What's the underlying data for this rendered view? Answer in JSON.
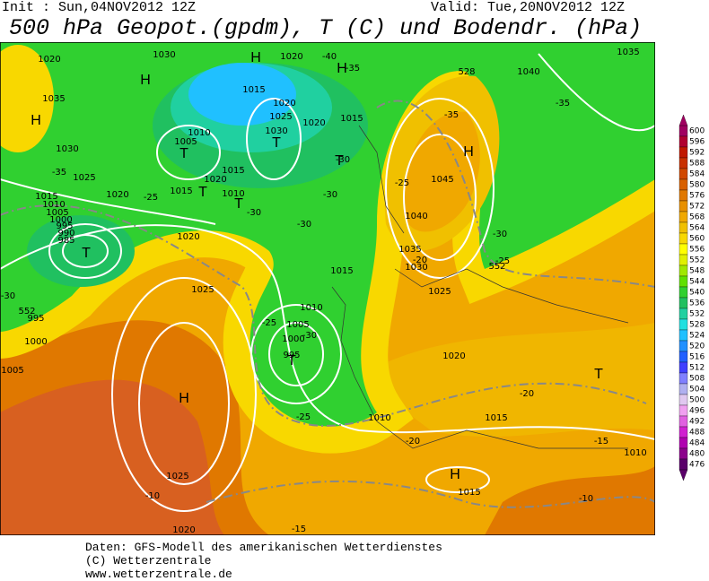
{
  "header": {
    "init": "Init : Sun,04NOV2012 12Z",
    "valid": "Valid: Tue,20NOV2012 12Z",
    "title": "500 hPa Geopot.(gpdm), T (C) und Bodendr. (hPa)"
  },
  "map_labels": [
    "1020",
    "1030",
    "1020",
    "1015",
    "1020",
    "1025",
    "1030",
    "1010",
    "1005",
    "1020",
    "1015",
    "1035",
    "1030",
    "1025",
    "1020",
    "1015",
    "1015",
    "1020",
    "1010",
    "1015",
    "1010",
    "1005",
    "1000",
    "995",
    "990",
    "985",
    "1020",
    "1025",
    "1015",
    "1010",
    "1005",
    "1000",
    "995",
    "1010",
    "1015",
    "1025",
    "1020",
    "1035",
    "1030",
    "1040",
    "1045",
    "1040",
    "1035",
    "1025",
    "1020",
    "1015",
    "1010",
    "995",
    "1000",
    "1005",
    "-40",
    "-35",
    "-35",
    "-35",
    "-35",
    "-30",
    "-30",
    "-30",
    "-30",
    "-30",
    "-30",
    "-25",
    "-25",
    "-25",
    "-25",
    "-25",
    "-20",
    "-20",
    "-20",
    "-15",
    "-15",
    "-10",
    "-10",
    "-30",
    "552",
    "528",
    "552"
  ],
  "centers": [
    "H",
    "H",
    "H",
    "H",
    "H",
    "H",
    "H",
    "T",
    "T",
    "T",
    "T",
    "T",
    "T",
    "T",
    "T"
  ],
  "colorbar": {
    "values": [
      600,
      596,
      592,
      588,
      584,
      580,
      576,
      572,
      568,
      564,
      560,
      556,
      552,
      548,
      544,
      540,
      536,
      532,
      528,
      524,
      520,
      516,
      512,
      508,
      504,
      500,
      496,
      492,
      488,
      484,
      480,
      476
    ],
    "colors": [
      "#a00060",
      "#b00030",
      "#c01800",
      "#c83000",
      "#d04800",
      "#d86000",
      "#e07800",
      "#e89000",
      "#f0a800",
      "#f0c000",
      "#f8d800",
      "#ffff00",
      "#e0f000",
      "#a0e800",
      "#60e000",
      "#30d030",
      "#20c060",
      "#20d0a0",
      "#20e0e0",
      "#20c0ff",
      "#2090ff",
      "#2060ff",
      "#4040ff",
      "#8080ff",
      "#b0b0f0",
      "#e0c8f0",
      "#f0a0f0",
      "#e060e0",
      "#d020d0",
      "#b000b0",
      "#8b008b",
      "#5a006a"
    ]
  },
  "footer": {
    "lines": [
      "Daten: GFS-Modell des amerikanischen Wetterdienstes",
      "(C) Wetterzentrale",
      "www.wetterzentrale.de"
    ]
  }
}
